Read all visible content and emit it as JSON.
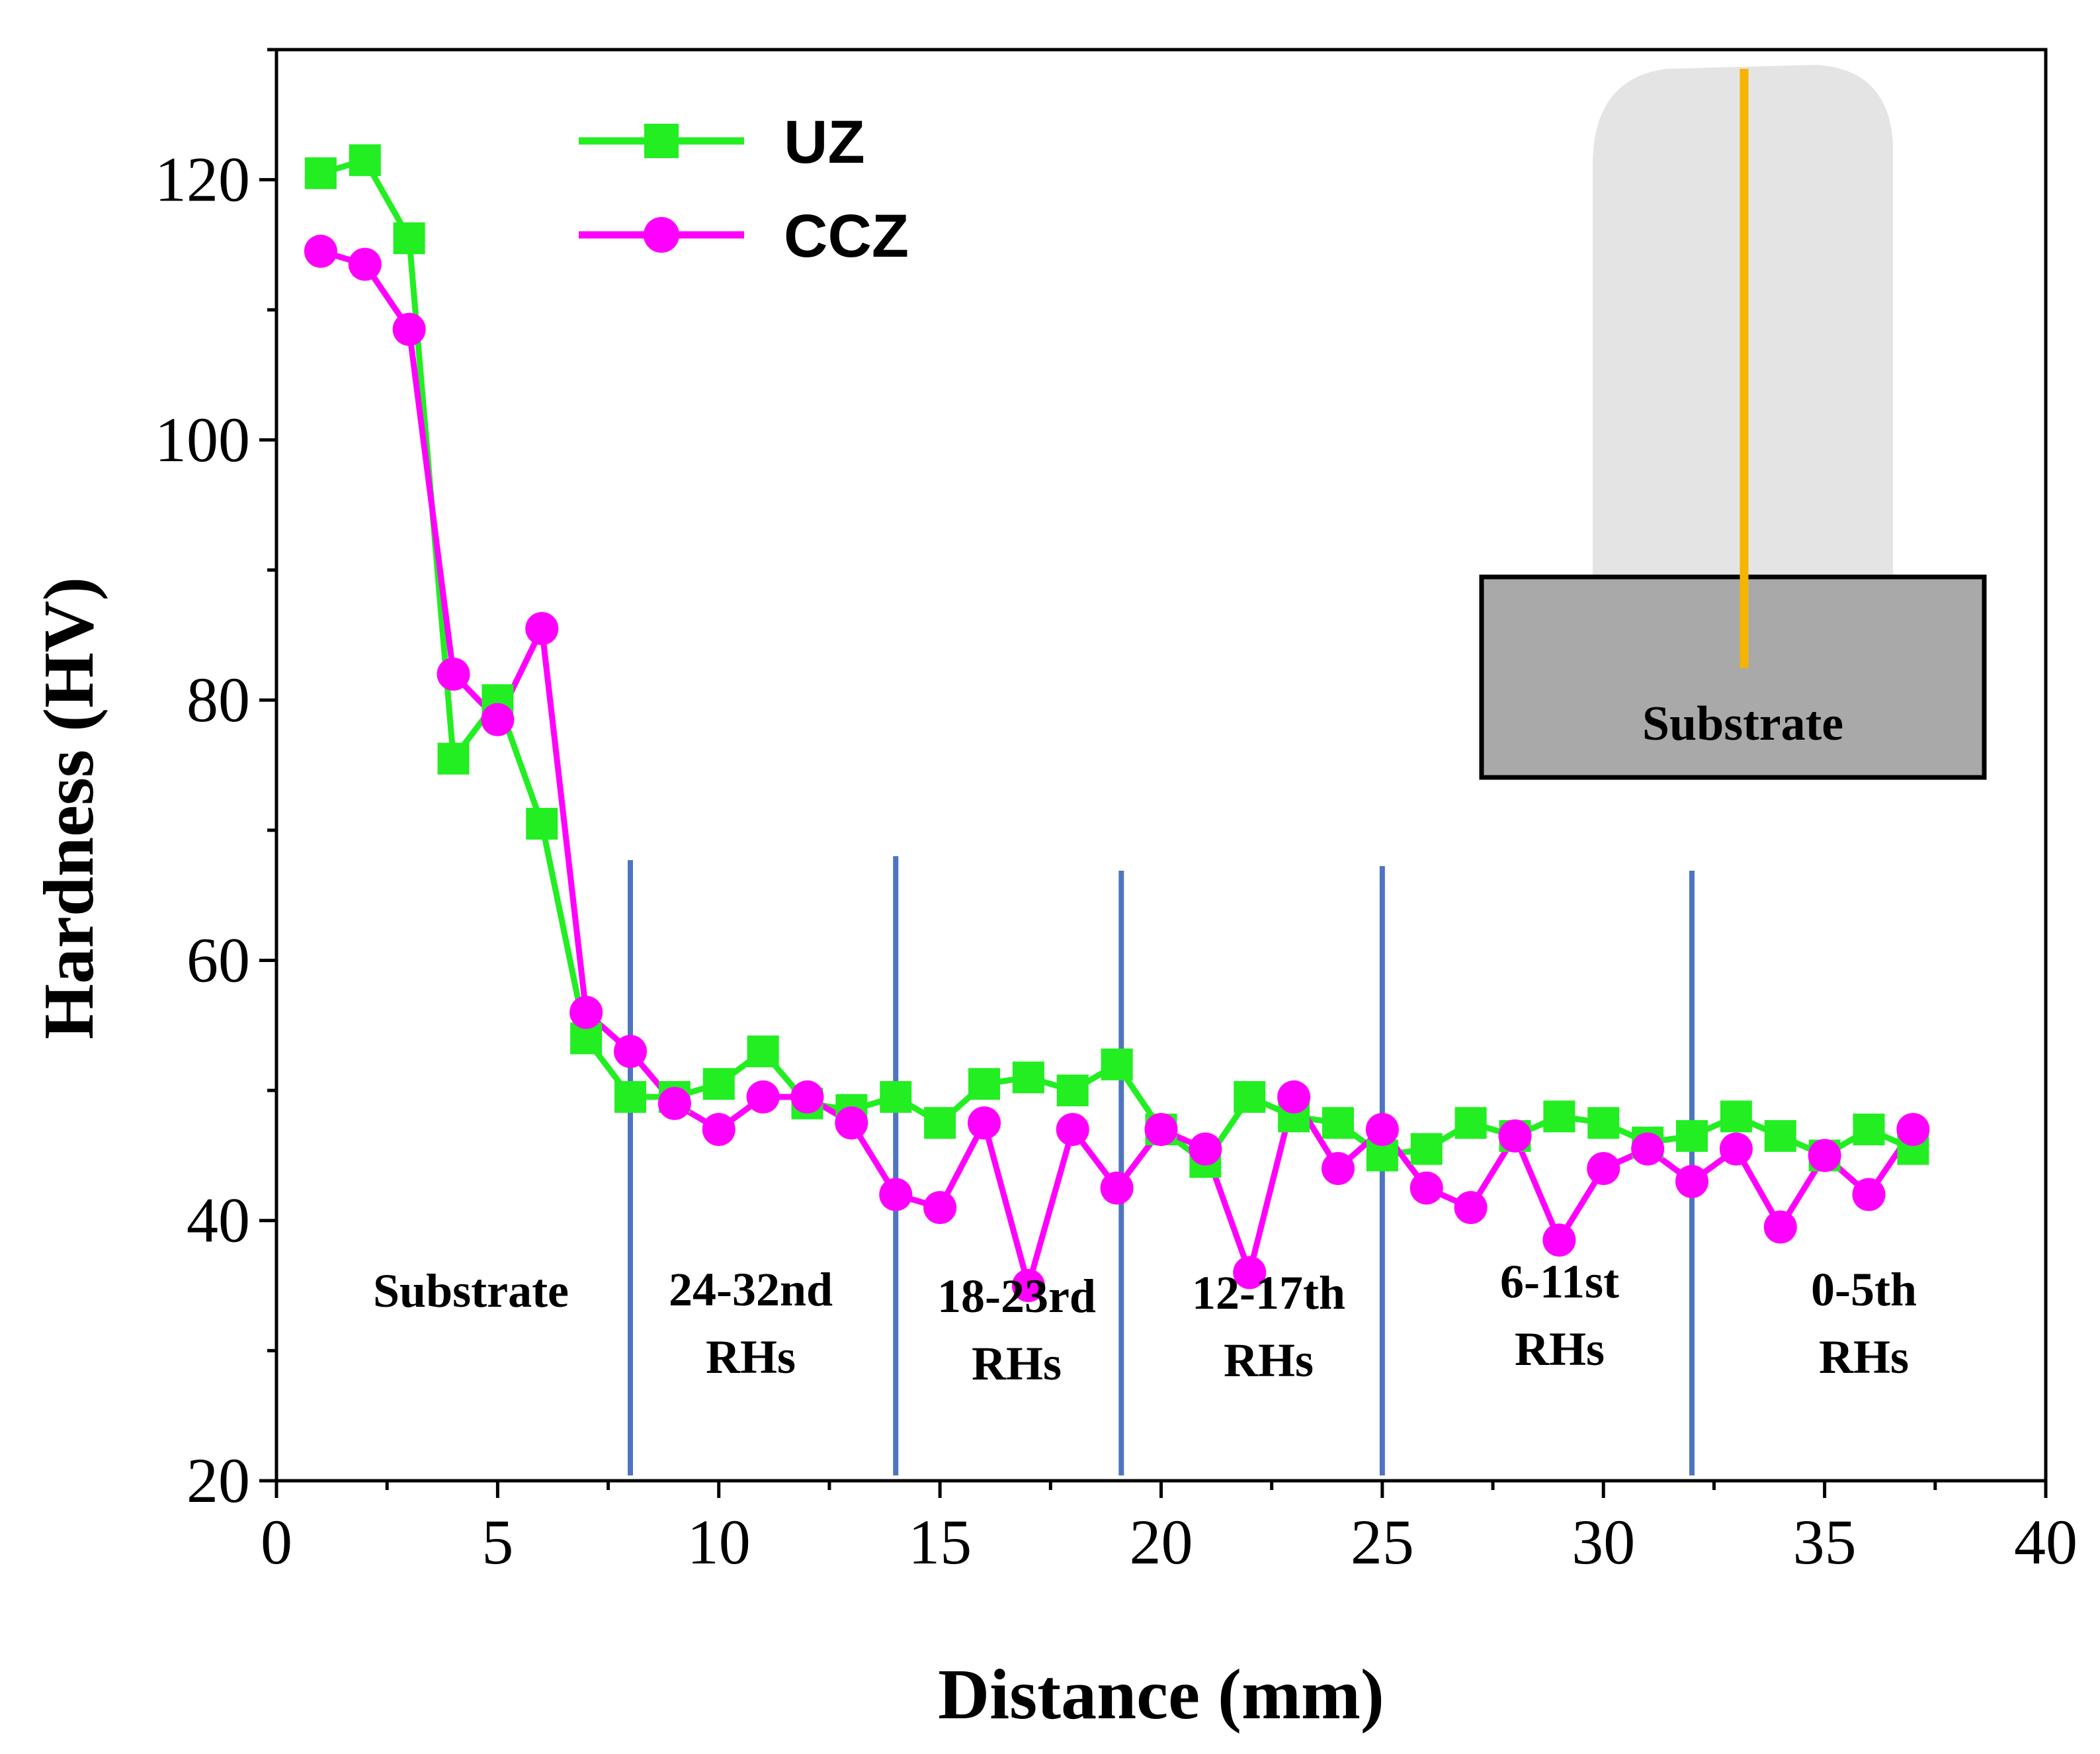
{
  "chart_data": {
    "type": "line",
    "title": "",
    "xlabel": "Distance (mm)",
    "ylabel": "Hardness (HV)",
    "xlim": [
      0,
      40
    ],
    "ylim": [
      20,
      130
    ],
    "xticks": [
      0,
      5,
      10,
      15,
      20,
      25,
      30,
      35,
      40
    ],
    "yticks": [
      20,
      40,
      60,
      80,
      100,
      120
    ],
    "legend_position": "top-left",
    "series": [
      {
        "name": "UZ",
        "color": "#22ee22",
        "marker": "square",
        "x": [
          1,
          2,
          3,
          4,
          5,
          6,
          7,
          8,
          9,
          10,
          11,
          12,
          13,
          14,
          15,
          16,
          17,
          18,
          19,
          20,
          21,
          22,
          23,
          24,
          25,
          26,
          27,
          28,
          29,
          30,
          31,
          32,
          33,
          34,
          35,
          36,
          37
        ],
        "values": [
          120.5,
          121.5,
          115.5,
          75.5,
          80,
          70.5,
          54,
          49.5,
          49.5,
          50.5,
          53,
          49,
          48.5,
          49.5,
          47.5,
          50.5,
          51,
          50,
          52,
          47,
          44.5,
          49.5,
          48,
          47.5,
          45,
          45.5,
          47.5,
          46.5,
          48,
          47.5,
          46,
          46.5,
          48,
          46.5,
          45,
          47,
          45.5
        ]
      },
      {
        "name": "CCZ",
        "color": "#ff00ff",
        "marker": "circle",
        "x": [
          1,
          2,
          3,
          4,
          5,
          6,
          7,
          8,
          9,
          10,
          11,
          12,
          13,
          14,
          15,
          16,
          17,
          18,
          19,
          20,
          21,
          22,
          23,
          24,
          25,
          26,
          27,
          28,
          29,
          30,
          31,
          32,
          33,
          34,
          35,
          36,
          37
        ],
        "values": [
          114.5,
          113.5,
          108.5,
          82,
          78.5,
          85.5,
          56,
          53,
          49,
          47,
          49.5,
          49.5,
          47.5,
          42,
          41,
          47.5,
          35,
          47,
          42.5,
          47,
          45.5,
          36,
          49.5,
          44,
          47,
          42.5,
          41,
          46.5,
          38.5,
          44,
          45.5,
          43,
          45.5,
          39.5,
          45,
          42,
          47
        ]
      }
    ],
    "dividers": {
      "color": "#4f75c0",
      "x": [
        8,
        14,
        19.1,
        25,
        32
      ]
    },
    "region_labels": [
      {
        "lines": [
          "Substrate"
        ]
      },
      {
        "lines": [
          "24-32nd",
          "RHs"
        ]
      },
      {
        "lines": [
          "18-23rd",
          "RHs"
        ]
      },
      {
        "lines": [
          "12-17th",
          "RHs"
        ]
      },
      {
        "lines": [
          "6-11st",
          "RHs"
        ]
      },
      {
        "lines": [
          "0-5th",
          "RHs"
        ]
      }
    ],
    "inset": {
      "label": "Substrate",
      "deposit_color": "#e4e4e4",
      "substrate_color": "#a9a9a9",
      "line_color": "#f5b400"
    }
  }
}
